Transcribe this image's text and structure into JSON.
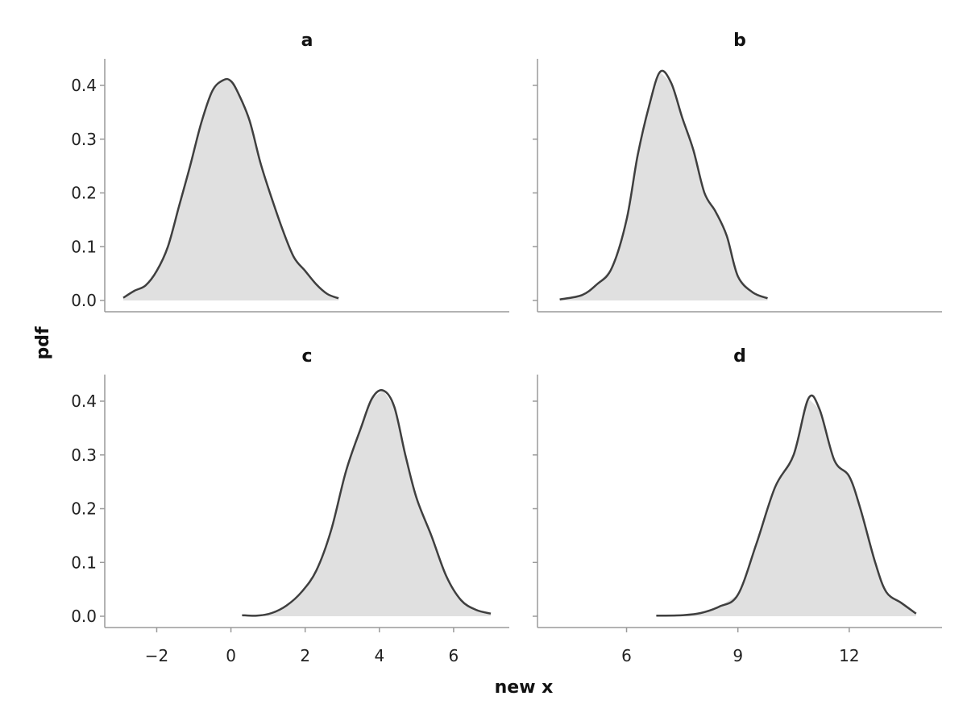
{
  "chart_data": {
    "type": "area",
    "xlabel": "new x",
    "ylabel": "pdf",
    "grid": false,
    "legend": "none",
    "colors": {
      "fill": "#e0e0e0",
      "line": "#3f3f3f",
      "spine": "#9a9a9a"
    },
    "yticks": [
      0.0,
      0.1,
      0.2,
      0.3,
      0.4
    ],
    "ytick_labels": [
      "0.0",
      "0.1",
      "0.2",
      "0.3",
      "0.4"
    ],
    "ylim": [
      -0.02,
      0.45
    ],
    "columns": [
      {
        "xlim": [
          -3.4,
          7.5
        ],
        "xticks": [
          -2,
          0,
          2,
          4,
          6
        ],
        "xtick_labels": [
          "−2",
          "0",
          "2",
          "4",
          "6"
        ]
      },
      {
        "xlim": [
          3.6,
          14.5
        ],
        "xticks": [
          6,
          9,
          12
        ],
        "xtick_labels": [
          "6",
          "9",
          "12"
        ]
      }
    ],
    "panels": [
      {
        "title": "a",
        "x": [
          -2.9,
          -2.6,
          -2.3,
          -2.0,
          -1.7,
          -1.4,
          -1.1,
          -0.8,
          -0.5,
          -0.2,
          0.0,
          0.2,
          0.5,
          0.8,
          1.1,
          1.4,
          1.7,
          2.0,
          2.3,
          2.6,
          2.9
        ],
        "y": [
          0.005,
          0.018,
          0.028,
          0.055,
          0.1,
          0.175,
          0.25,
          0.33,
          0.39,
          0.41,
          0.408,
          0.385,
          0.335,
          0.255,
          0.19,
          0.13,
          0.08,
          0.055,
          0.03,
          0.012,
          0.004
        ]
      },
      {
        "title": "b",
        "x": [
          4.2,
          4.8,
          5.2,
          5.6,
          6.0,
          6.3,
          6.6,
          6.9,
          7.2,
          7.5,
          7.8,
          8.1,
          8.4,
          8.7,
          9.0,
          9.4,
          9.8
        ],
        "y": [
          0.002,
          0.01,
          0.03,
          0.06,
          0.15,
          0.27,
          0.36,
          0.425,
          0.405,
          0.34,
          0.28,
          0.2,
          0.165,
          0.12,
          0.045,
          0.015,
          0.004
        ]
      },
      {
        "title": "c",
        "x": [
          0.3,
          0.7,
          1.1,
          1.5,
          1.9,
          2.3,
          2.7,
          3.1,
          3.5,
          3.8,
          4.1,
          4.4,
          4.7,
          5.0,
          5.4,
          5.8,
          6.2,
          6.6,
          7.0
        ],
        "y": [
          0.002,
          0.001,
          0.006,
          0.02,
          0.045,
          0.085,
          0.16,
          0.27,
          0.35,
          0.405,
          0.42,
          0.39,
          0.3,
          0.22,
          0.15,
          0.075,
          0.03,
          0.012,
          0.005
        ]
      },
      {
        "title": "d",
        "x": [
          6.8,
          7.5,
          8.0,
          8.5,
          9.0,
          9.5,
          10.0,
          10.5,
          10.9,
          11.2,
          11.6,
          12.0,
          12.3,
          12.7,
          13.0,
          13.4,
          13.8
        ],
        "y": [
          0.001,
          0.002,
          0.006,
          0.018,
          0.04,
          0.135,
          0.24,
          0.3,
          0.405,
          0.385,
          0.29,
          0.26,
          0.2,
          0.1,
          0.045,
          0.025,
          0.005
        ]
      }
    ]
  }
}
